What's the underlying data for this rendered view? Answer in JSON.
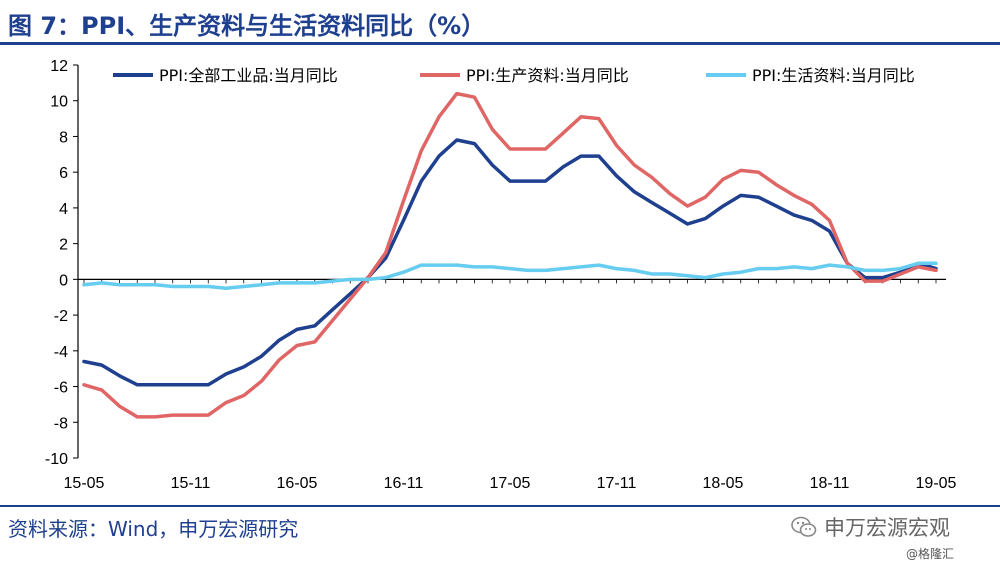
{
  "header": {
    "title": "图 7：PPI、生产资料与生活资料同比（%）"
  },
  "footer": {
    "source": "资料来源：Wind，申万宏源研究",
    "brand": "申万宏源宏观",
    "watermark": "@格隆汇"
  },
  "chart_data": {
    "type": "line",
    "title": "",
    "xlabel": "",
    "ylabel": "",
    "ylim": [
      -10,
      12
    ],
    "yticks": [
      "12",
      "10",
      "8",
      "6",
      "4",
      "2",
      "0",
      "-2",
      "-4",
      "-6",
      "-8",
      "-10"
    ],
    "x_tick_labels": [
      "15-05",
      "15-11",
      "16-05",
      "16-11",
      "17-05",
      "17-11",
      "18-05",
      "18-11",
      "19-05"
    ],
    "x": [
      "15-05",
      "15-06",
      "15-07",
      "15-08",
      "15-09",
      "15-10",
      "15-11",
      "15-12",
      "16-01",
      "16-02",
      "16-03",
      "16-04",
      "16-05",
      "16-06",
      "16-07",
      "16-08",
      "16-09",
      "16-10",
      "16-11",
      "16-12",
      "17-01",
      "17-02",
      "17-03",
      "17-04",
      "17-05",
      "17-06",
      "17-07",
      "17-08",
      "17-09",
      "17-10",
      "17-11",
      "17-12",
      "18-01",
      "18-02",
      "18-03",
      "18-04",
      "18-05",
      "18-06",
      "18-07",
      "18-08",
      "18-09",
      "18-10",
      "18-11",
      "18-12",
      "19-01",
      "19-02",
      "19-03",
      "19-04",
      "19-05"
    ],
    "legend_position": "top",
    "grid": false,
    "series": [
      {
        "name": "PPI:全部工业品:当月同比",
        "color": "#1f3f8f",
        "values": [
          -4.6,
          -4.8,
          -5.4,
          -5.9,
          -5.9,
          -5.9,
          -5.9,
          -5.9,
          -5.3,
          -4.9,
          -4.3,
          -3.4,
          -2.8,
          -2.6,
          -1.7,
          -0.8,
          0.1,
          1.2,
          3.3,
          5.5,
          6.9,
          7.8,
          7.6,
          6.4,
          5.5,
          5.5,
          5.5,
          6.3,
          6.9,
          6.9,
          5.8,
          4.9,
          4.3,
          3.7,
          3.1,
          3.4,
          4.1,
          4.7,
          4.6,
          4.1,
          3.6,
          3.3,
          2.7,
          0.9,
          0.1,
          0.1,
          0.4,
          0.9,
          0.6
        ]
      },
      {
        "name": "PPI:生产资料:当月同比",
        "color": "#e06666",
        "values": [
          -5.9,
          -6.2,
          -7.1,
          -7.7,
          -7.7,
          -7.6,
          -7.6,
          -7.6,
          -6.9,
          -6.5,
          -5.7,
          -4.5,
          -3.7,
          -3.5,
          -2.3,
          -1.1,
          0.1,
          1.5,
          4.4,
          7.2,
          9.1,
          10.4,
          10.2,
          8.4,
          7.3,
          7.3,
          7.3,
          8.2,
          9.1,
          9.0,
          7.5,
          6.4,
          5.7,
          4.8,
          4.1,
          4.6,
          5.6,
          6.1,
          6.0,
          5.3,
          4.7,
          4.2,
          3.3,
          0.9,
          -0.1,
          -0.1,
          0.3,
          0.7,
          0.5
        ]
      },
      {
        "name": "PPI:生活资料:当月同比",
        "color": "#66ccf0",
        "values": [
          -0.3,
          -0.2,
          -0.3,
          -0.3,
          -0.3,
          -0.4,
          -0.4,
          -0.4,
          -0.5,
          -0.4,
          -0.3,
          -0.2,
          -0.2,
          -0.2,
          -0.1,
          0.0,
          0.0,
          0.1,
          0.4,
          0.8,
          0.8,
          0.8,
          0.7,
          0.7,
          0.6,
          0.5,
          0.5,
          0.6,
          0.7,
          0.8,
          0.6,
          0.5,
          0.3,
          0.3,
          0.2,
          0.1,
          0.3,
          0.4,
          0.6,
          0.6,
          0.7,
          0.6,
          0.8,
          0.7,
          0.5,
          0.5,
          0.6,
          0.9,
          0.9
        ]
      }
    ]
  }
}
